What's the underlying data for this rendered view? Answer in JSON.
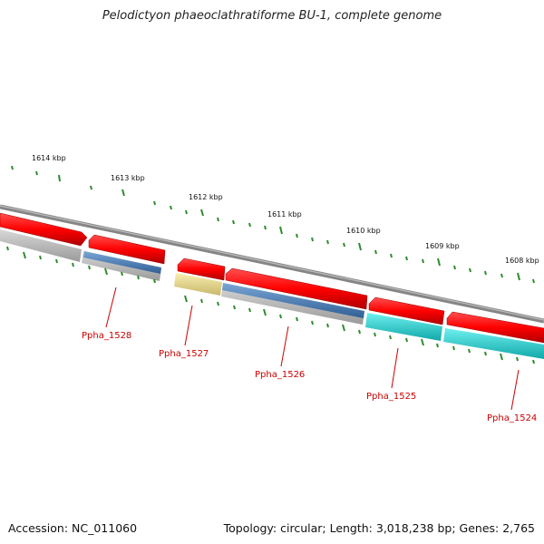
{
  "title": "Pelodictyon phaeoclathratiforme BU-1, complete genome",
  "footer": {
    "accession": "Accession: NC_011060",
    "topology": "Topology: circular; Length: 3,018,238 bp; Genes: 2,765"
  },
  "ruler_labels": [
    "1614 kbp",
    "1613 kbp",
    "1612 kbp",
    "1611 kbp",
    "1610 kbp",
    "1609 kbp",
    "1608 kbp"
  ],
  "genes": [
    {
      "name": "Ppha_1528"
    },
    {
      "name": "Ppha_1527"
    },
    {
      "name": "Ppha_1526"
    },
    {
      "name": "Ppha_1525"
    },
    {
      "name": "Ppha_1524"
    }
  ],
  "colors": {
    "backbone": "#8a8a8a",
    "cds": "#ff0000",
    "label": "#cc0000",
    "tick": "#2e8b2e",
    "track_gray": "#bdbdbd",
    "track_blue": "#4f7fb5",
    "track_yellow": "#f2e28c",
    "track_cyan": "#20d0d0"
  }
}
